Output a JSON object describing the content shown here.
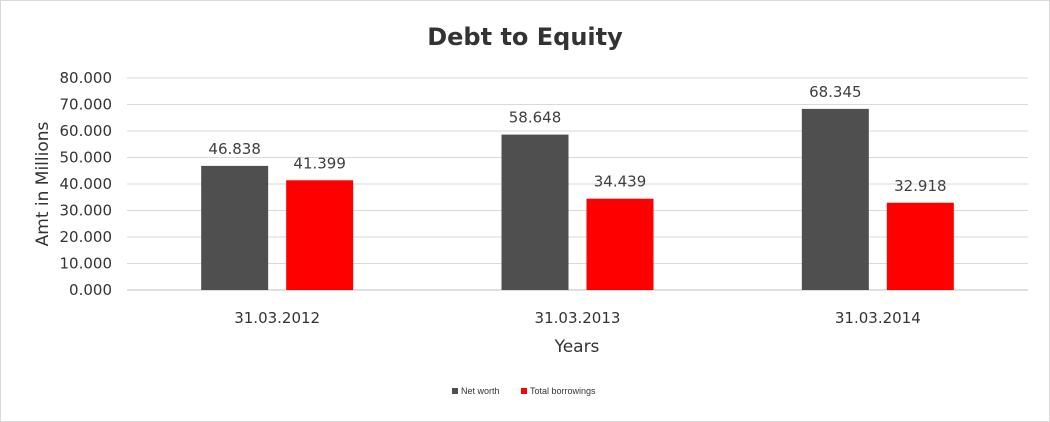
{
  "chart_data": {
    "type": "bar",
    "title": "Debt to Equity",
    "xlabel": "Years",
    "ylabel": "Amt in Millions",
    "categories": [
      "31.03.2012",
      "31.03.2013",
      "31.03.2014"
    ],
    "series": [
      {
        "name": "Net worth",
        "color": "#4f4f4f",
        "values": [
          46.838,
          58.648,
          68.345
        ]
      },
      {
        "name": "Total borrowings",
        "color": "#ff0000",
        "values": [
          41.399,
          34.439,
          32.918
        ]
      }
    ],
    "ylim": [
      0,
      80
    ],
    "yticks": [
      "0.000",
      "10.000",
      "20.000",
      "30.000",
      "40.000",
      "50.000",
      "60.000",
      "70.000",
      "80.000"
    ],
    "data_labels": [
      [
        "46.838",
        "58.648",
        "68.345"
      ],
      [
        "41.399",
        "34.439",
        "32.918"
      ]
    ],
    "grid": true,
    "legend_position": "bottom"
  }
}
